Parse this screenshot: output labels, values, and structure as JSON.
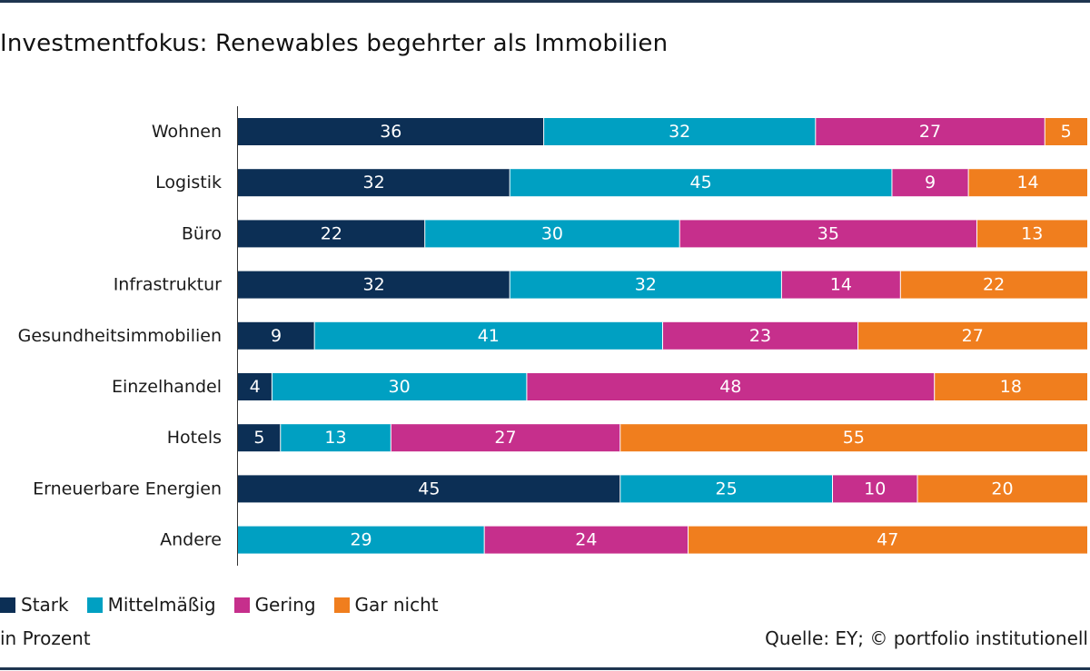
{
  "title": "Investmentfokus: Renewables begehrter als Immobilien",
  "footnote_unit": "in Prozent",
  "source": "Quelle: EY; © portfolio institutionell",
  "colors": {
    "stark": "#0c2f55",
    "mittelmaessig": "#00a0c2",
    "gering": "#c62f8c",
    "gar_nicht": "#f07e1e",
    "rule": "#1e3550"
  },
  "legend": [
    {
      "label": "Stark",
      "color": "#0c2f55"
    },
    {
      "label": "Mittelmäßig",
      "color": "#00a0c2"
    },
    {
      "label": "Gering",
      "color": "#c62f8c"
    },
    {
      "label": "Gar nicht",
      "color": "#f07e1e"
    }
  ],
  "chart_data": {
    "type": "bar",
    "orientation": "horizontal",
    "stacked": true,
    "categories": [
      "Wohnen",
      "Logistik",
      "Büro",
      "Infrastruktur",
      "Gesundheitsimmobilien",
      "Einzelhandel",
      "Hotels",
      "Erneuerbare Energien",
      "Andere"
    ],
    "series": [
      {
        "name": "Stark",
        "values": [
          36,
          32,
          22,
          32,
          9,
          4,
          5,
          45,
          0
        ]
      },
      {
        "name": "Mittelmäßig",
        "values": [
          32,
          45,
          30,
          32,
          41,
          30,
          13,
          25,
          29
        ]
      },
      {
        "name": "Gering",
        "values": [
          27,
          9,
          35,
          14,
          23,
          48,
          27,
          10,
          24
        ]
      },
      {
        "name": "Gar nicht",
        "values": [
          5,
          14,
          13,
          22,
          27,
          18,
          55,
          20,
          47
        ]
      }
    ],
    "xlim": [
      0,
      100
    ],
    "grid": false,
    "legend_position": "bottom-left"
  }
}
